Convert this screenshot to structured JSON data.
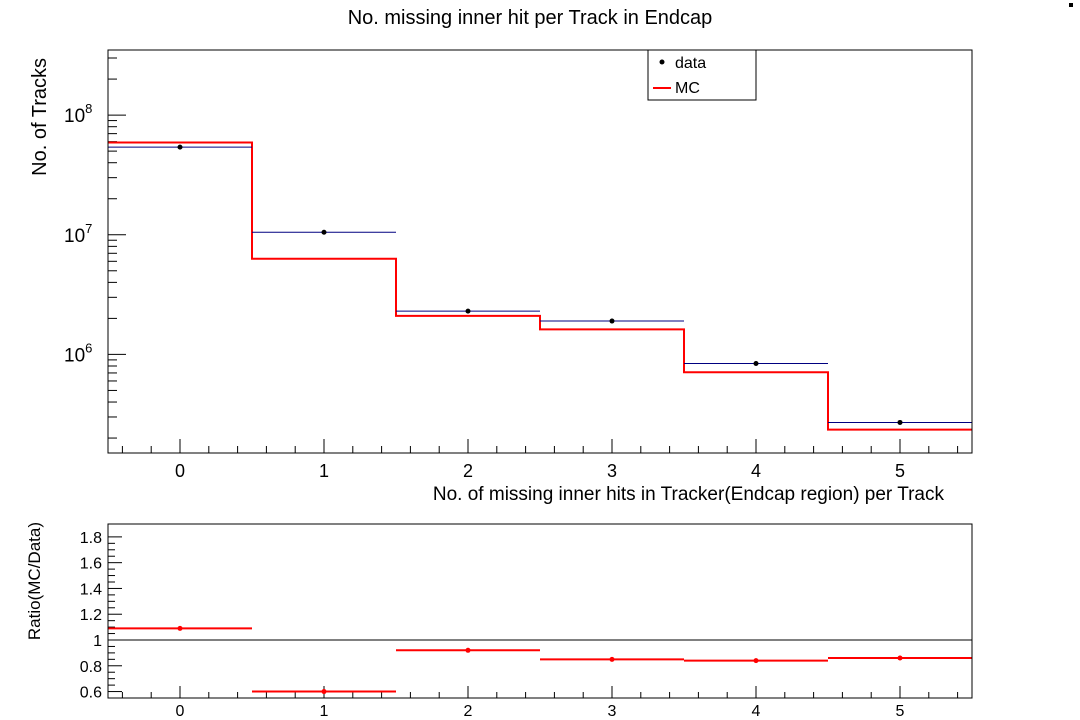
{
  "chart_data": [
    {
      "panel": "main",
      "type": "line",
      "title": "No. missing inner hit per Track in Endcap",
      "xlabel": "No. of missing inner hits in Tracker(Endcap region) per Track",
      "ylabel": "No. of Tracks",
      "yscale": "log",
      "ylim": [
        150000,
        350000000
      ],
      "xlim": [
        -0.5,
        5.5
      ],
      "x_ticks": [
        "0",
        "1",
        "2",
        "3",
        "4",
        "5"
      ],
      "y_ticks": [
        {
          "base": "10",
          "exp": "6",
          "value": 1000000
        },
        {
          "base": "10",
          "exp": "7",
          "value": 10000000
        },
        {
          "base": "10",
          "exp": "8",
          "value": 100000000
        }
      ],
      "legend": {
        "placement": "top-right",
        "entries": [
          "data",
          "MC"
        ]
      },
      "grid": false,
      "series": [
        {
          "name": "data",
          "style": "markers with x-error bars",
          "color": "#000080",
          "x": [
            0,
            1,
            2,
            3,
            4,
            5
          ],
          "values": [
            54000000,
            10500000,
            2300000,
            1900000,
            840000,
            270000
          ]
        },
        {
          "name": "MC",
          "style": "step histogram",
          "color": "#ff0000",
          "x": [
            0,
            1,
            2,
            3,
            4,
            5
          ],
          "values": [
            59000000,
            6300000,
            2100000,
            1620000,
            710000,
            235000
          ]
        }
      ]
    },
    {
      "panel": "ratio",
      "type": "scatter",
      "ylabel": "Ratio(MC/Data)",
      "ylim": [
        0.55,
        1.9
      ],
      "xlim": [
        -0.5,
        5.5
      ],
      "x_ticks": [
        "0",
        "1",
        "2",
        "3",
        "4",
        "5"
      ],
      "y_ticks": [
        "0.6",
        "0.8",
        "1",
        "1.2",
        "1.4",
        "1.6",
        "1.8"
      ],
      "reference_line": 1,
      "grid": false,
      "series": [
        {
          "color": "#ff0000",
          "x": [
            0,
            1,
            2,
            3,
            4,
            5
          ],
          "values": [
            1.09,
            0.6,
            0.92,
            0.85,
            0.84,
            0.86
          ]
        }
      ]
    }
  ]
}
